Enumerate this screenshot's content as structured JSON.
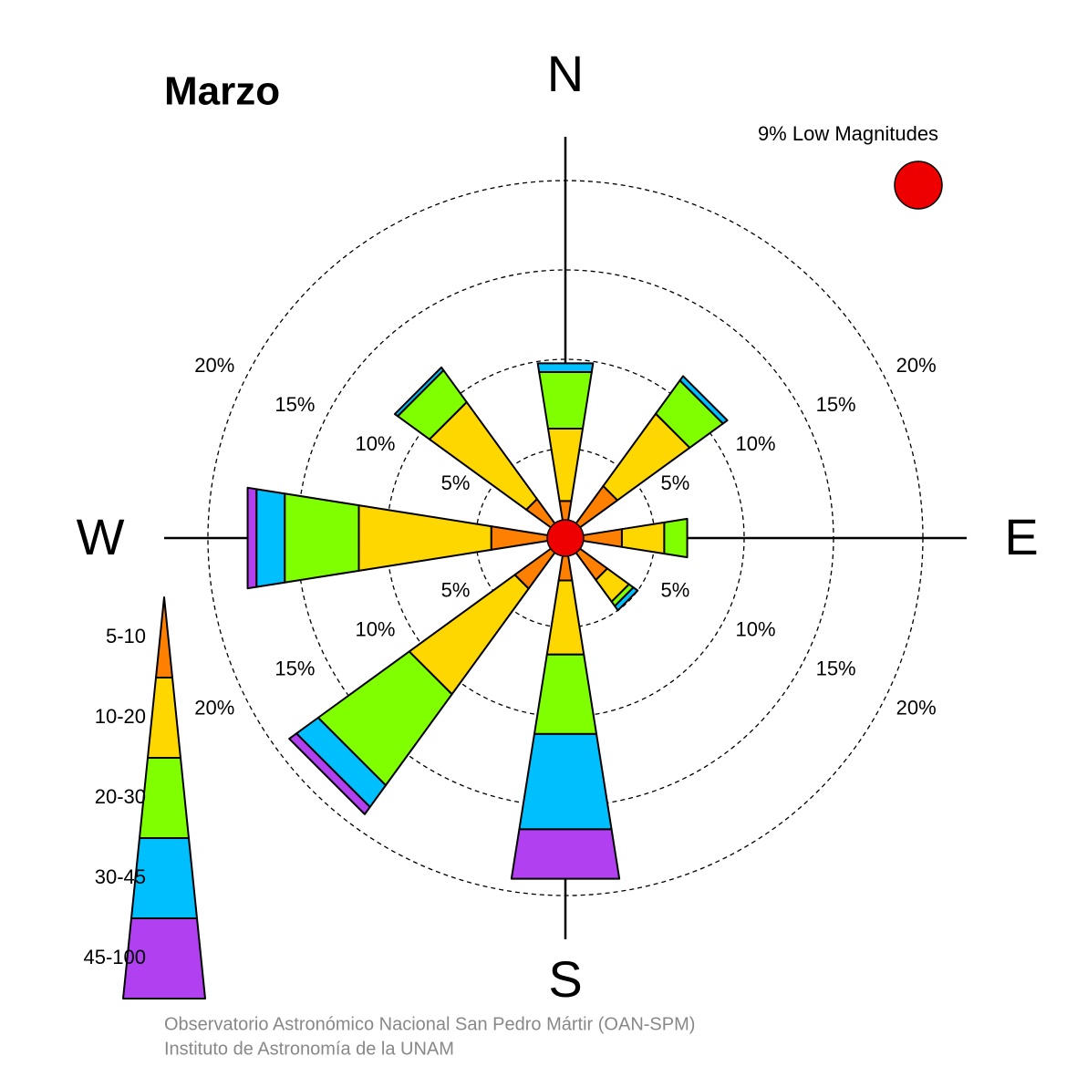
{
  "chart_data": {
    "type": "windrose",
    "title": "Marzo",
    "categories": [
      "N",
      null,
      "E",
      null,
      "S",
      null,
      "W",
      null
    ],
    "series": [
      {
        "name": "5-10",
        "color": "#ff8000",
        "values": [
          2.1,
          3.6,
          3.2,
          2.9,
          2.4,
          3.5,
          4.2,
          2.7
        ]
      },
      {
        "name": "10-20",
        "color": "#ffd700",
        "values": [
          4.1,
          5.0,
          2.4,
          1.5,
          4.2,
          7.3,
          7.5,
          6.7
        ]
      },
      {
        "name": "20-30",
        "color": "#80ff00",
        "values": [
          3.2,
          2.3,
          1.3,
          0.3,
          4.5,
          6.3,
          4.2,
          2.2
        ]
      },
      {
        "name": "30-45",
        "color": "#00bfff",
        "values": [
          0.5,
          0.3,
          0,
          0.3,
          5.4,
          1.5,
          1.6,
          0.2
        ]
      },
      {
        "name": "45-100",
        "color": "#b040f0",
        "values": [
          0,
          0,
          0,
          0,
          2.8,
          0.5,
          0.5,
          0
        ]
      }
    ],
    "rlim": [
      0,
      20
    ],
    "rticks": [
      {
        "value": 5,
        "label": "5%"
      },
      {
        "value": 10,
        "label": "10%"
      },
      {
        "value": 15,
        "label": "15%"
      },
      {
        "value": 20,
        "label": "20%"
      }
    ],
    "calm": 9,
    "calm_label": "9% Low Magnitudes",
    "calm_color": "#ee0000",
    "footer": [
      "Observatorio Astronómico Nacional San Pedro Mártir (OAN-SPM)",
      "Instituto de Astronomía de la UNAM"
    ]
  }
}
